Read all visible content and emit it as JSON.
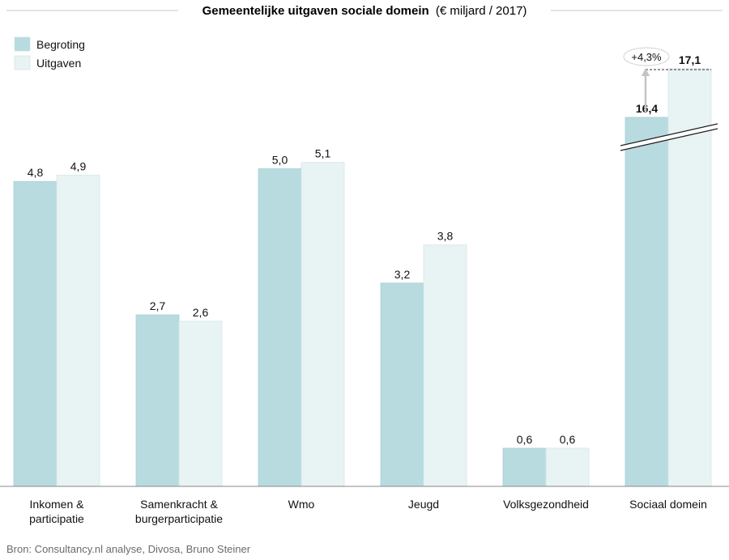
{
  "chart_data": {
    "type": "bar",
    "title_main": "Gemeentelijke uitgaven sociale domein",
    "title_unit": "(€ miljard / 2017)",
    "categories": [
      "Inkomen & participatie",
      "Samenkracht & burgerparticipatie",
      "Wmo",
      "Jeugd",
      "Volksgezondheid",
      "Sociaal domein"
    ],
    "category_lines": [
      [
        "Inkomen &",
        "participatie"
      ],
      [
        "Samenkracht &",
        "burgerparticipatie"
      ],
      [
        "Wmo"
      ],
      [
        "Jeugd"
      ],
      [
        "Volksgezondheid"
      ],
      [
        "Sociaal domein"
      ]
    ],
    "series": [
      {
        "name": "Begroting",
        "color": "#b8dbe0",
        "values": [
          4.8,
          2.7,
          5.0,
          3.2,
          0.6,
          16.4
        ],
        "labels": [
          "4,8",
          "2,7",
          "5,0",
          "3,2",
          "0,6",
          "16,4"
        ]
      },
      {
        "name": "Uitgaven",
        "color": "#e8f3f4",
        "values": [
          4.9,
          2.6,
          5.1,
          3.8,
          0.6,
          17.1
        ],
        "labels": [
          "4,9",
          "2,6",
          "5,1",
          "3,8",
          "0,6",
          "17,1"
        ]
      }
    ],
    "axis_break": {
      "category": "Sociaal domein"
    },
    "annotation": {
      "text": "+4,3%",
      "category": "Sociaal domein"
    },
    "ylim": [
      0,
      5.5
    ],
    "xlabel": "",
    "ylabel": "",
    "grid": false,
    "legend_position": "top-left"
  },
  "source": "Bron: Consultancy.nl analyse, Divosa, Bruno Steiner"
}
